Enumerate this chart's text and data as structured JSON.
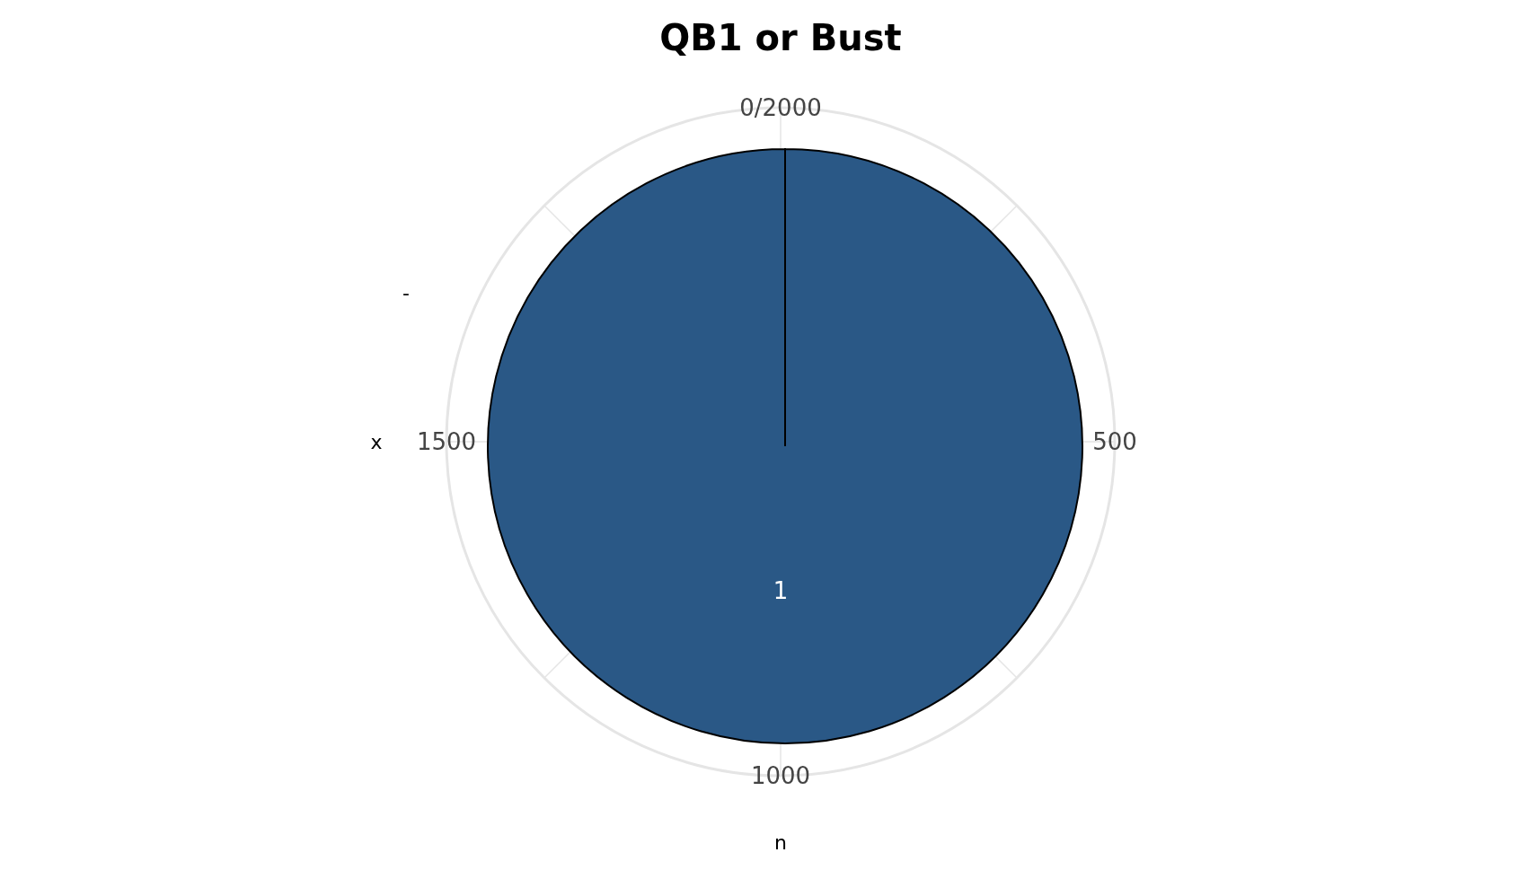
{
  "chart_data": {
    "type": "pie",
    "title": "QB1 or Bust",
    "xlabel": "n",
    "ylabel": "x",
    "categories": [
      "-"
    ],
    "values": [
      100
    ],
    "colors": [
      "#2a5886"
    ],
    "annotations": [
      "1",
      "0/2000",
      "500",
      "1000",
      "1500"
    ],
    "grid": true
  }
}
